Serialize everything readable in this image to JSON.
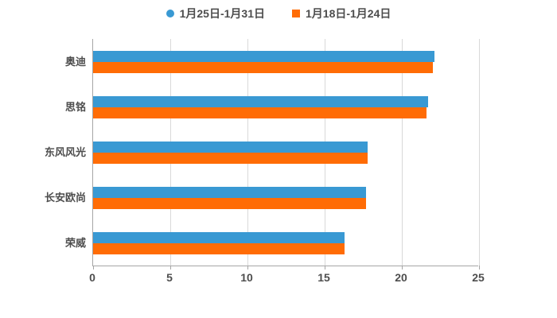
{
  "legend": {
    "items": [
      {
        "label": "1月25日-1月31日",
        "marker": "circle",
        "color": "#3999d3"
      },
      {
        "label": "1月18日-1月24日",
        "marker": "square",
        "color": "#ff6c05"
      }
    ]
  },
  "chart_data": {
    "type": "bar",
    "orientation": "horizontal",
    "title": "",
    "xlabel": "",
    "ylabel": "",
    "categories": [
      "奥迪",
      "思铭",
      "东风风光",
      "长安欧尚",
      "荣威"
    ],
    "series": [
      {
        "name": "1月25日-1月31日",
        "color": "#3999d3",
        "marker": "circle",
        "values": [
          22.1,
          21.7,
          17.8,
          17.7,
          16.3
        ]
      },
      {
        "name": "1月18日-1月24日",
        "color": "#ff6c05",
        "marker": "square",
        "values": [
          22.0,
          21.6,
          17.8,
          17.7,
          16.3
        ]
      }
    ],
    "xlim": [
      0,
      25
    ],
    "xticks": [
      0,
      5,
      10,
      15,
      20,
      25
    ],
    "grid": true,
    "legend_position": "top"
  },
  "colors": {
    "series1": "#3999d3",
    "series2": "#ff6c05",
    "axis": "#a6a6a6",
    "gridline": "#d9d9d9",
    "text": "#4d4d4d",
    "background": "#ffffff"
  }
}
